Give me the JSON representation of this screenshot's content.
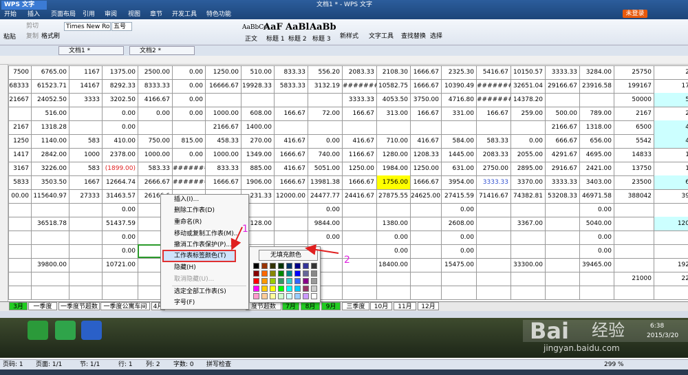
{
  "title_bar": {
    "app": "WPS 文字",
    "document": "文档1 * - WPS 文字",
    "login": "未登录"
  },
  "menu": [
    "开始",
    "插入",
    "页面布局",
    "引用",
    "审阅",
    "视图",
    "章节",
    "开发工具",
    "特色功能"
  ],
  "ribbon": {
    "paste": "粘贴",
    "cut": "剪切",
    "copy": "复制",
    "format_painter": "格式刷",
    "font": "Times New Ro",
    "size": "五号",
    "styles": [
      {
        "sample": "AaBbCc",
        "name": "正文"
      },
      {
        "sample": "AaF",
        "name": "标题 1"
      },
      {
        "sample": "AaBl",
        "name": "标题 2"
      },
      {
        "sample": "AaBb",
        "name": "标题 3"
      }
    ],
    "new_style": "新样式",
    "text_tools": "文字工具",
    "find_replace": "查找替换",
    "select": "选择"
  },
  "doc_tabs": [
    "文档1 *",
    "文档2 *"
  ],
  "table": {
    "rows": [
      [
        "7500",
        "6765.00",
        "1167",
        "1375.00",
        "2500.00",
        "0.00",
        "1250.00",
        "510.00",
        "833.33",
        "556.20",
        "2083.33",
        "2108.30",
        "1666.67",
        "2325.30",
        "5416.67",
        "10150.57",
        "3333.33",
        "3284.00",
        "25750",
        "2"
      ],
      [
        "68333",
        "61523.71",
        "14167",
        "8292.33",
        "8333.33",
        "0.00",
        "16666.67",
        "19928.33",
        "5833.33",
        "3132.19",
        "########",
        "10582.75",
        "1666.67",
        "10390.49",
        "########",
        "32651.04",
        "29166.67",
        "23916.58",
        "199167",
        "17"
      ],
      [
        "21667",
        "24052.50",
        "3333",
        "3202.50",
        "4166.67",
        "0.00",
        null,
        null,
        null,
        null,
        "3333.33",
        "4053.50",
        "3750.00",
        "4716.80",
        "########",
        "14378.20",
        null,
        null,
        "50000",
        "5"
      ],
      [
        null,
        "516.00",
        null,
        "0.00",
        "0.00",
        "0.00",
        "1000.00",
        "608.00",
        "166.67",
        "72.00",
        "166.67",
        "313.00",
        "166.67",
        "331.00",
        "166.67",
        "259.00",
        "500.00",
        "789.00",
        "2167",
        "2"
      ],
      [
        "2167",
        "1318.28",
        null,
        "0.00",
        null,
        null,
        "2166.67",
        "1400.00",
        null,
        null,
        null,
        null,
        null,
        null,
        null,
        null,
        "2166.67",
        "1318.00",
        "6500",
        "4"
      ],
      [
        "1250",
        "1140.00",
        "583",
        "410.00",
        "750.00",
        "815.00",
        "458.33",
        "270.00",
        "416.67",
        "0.00",
        "416.67",
        "710.00",
        "416.67",
        "584.00",
        "583.33",
        "0.00",
        "666.67",
        "656.00",
        "5542",
        "4"
      ],
      [
        "1417",
        "2842.00",
        "1000",
        "2378.00",
        "1000.00",
        "0.00",
        "1000.00",
        "1349.00",
        "1666.67",
        "740.00",
        "1166.67",
        "1280.00",
        "1208.33",
        "1445.00",
        "2083.33",
        "2055.00",
        "4291.67",
        "4695.00",
        "14833",
        "1"
      ],
      [
        "3167",
        "3226.00",
        "583",
        "(1899.00)",
        "583.33",
        "########",
        "833.33",
        "885.00",
        "416.67",
        "5051.00",
        "1250.00",
        "1984.00",
        "1250.00",
        "631.00",
        "2750.00",
        "2895.00",
        "2916.67",
        "2421.00",
        "13750",
        "1"
      ],
      [
        "5833",
        "3503.50",
        "1667",
        "12664.74",
        "2666.67",
        "########",
        "1666.67",
        "1906.00",
        "1666.67",
        "13981.38",
        "1666.67",
        "1756.00",
        "1666.67",
        "3954.00",
        "3333.33",
        "3370.00",
        "3333.33",
        "3403.00",
        "23500",
        "6"
      ],
      [
        "00.00",
        "115640.97",
        "27333",
        "31463.57",
        "26166.6",
        null,
        null,
        "231.33",
        "12000.00",
        "24477.77",
        "24416.67",
        "27875.55",
        "24625.00",
        "27415.59",
        "71416.67",
        "74382.81",
        "53208.33",
        "46971.58",
        "388042",
        "39"
      ],
      [
        null,
        null,
        null,
        "0.00",
        null,
        null,
        null,
        null,
        null,
        "0.00",
        null,
        null,
        null,
        "0.00",
        null,
        null,
        null,
        "0.00",
        null,
        null
      ],
      [
        null,
        "36518.78",
        null,
        "51437.59",
        null,
        null,
        null,
        "128.00",
        null,
        "9844.00",
        null,
        "1380.00",
        null,
        "2608.00",
        null,
        "3367.00",
        null,
        "5040.00",
        null,
        "120"
      ],
      [
        null,
        null,
        null,
        "0.00",
        null,
        null,
        null,
        null,
        null,
        "0.00",
        null,
        "0.00",
        null,
        "0.00",
        null,
        null,
        null,
        "0.00",
        null,
        null
      ],
      [
        null,
        null,
        null,
        "0.00",
        null,
        null,
        null,
        null,
        null,
        null,
        null,
        "0.00",
        null,
        "0.00",
        null,
        null,
        null,
        "0.00",
        null,
        null
      ],
      [
        null,
        "39800.00",
        null,
        "10721.00",
        null,
        null,
        null,
        null,
        null,
        null,
        null,
        "18400.00",
        null,
        "15475.00",
        null,
        "33300.00",
        null,
        "39465.00",
        null,
        "192"
      ],
      [
        null,
        null,
        null,
        null,
        null,
        null,
        null,
        null,
        null,
        null,
        null,
        null,
        null,
        null,
        null,
        null,
        null,
        null,
        "21000",
        "22"
      ],
      [
        null,
        null,
        null,
        null,
        null,
        null,
        null,
        null,
        null,
        null,
        null,
        null,
        null,
        null,
        null,
        null,
        null,
        null,
        null,
        null
      ]
    ]
  },
  "sheet_tabs": [
    "3月",
    "一季度",
    "一季度节超数",
    "一季度公寓车间",
    "4月",
    "度节超数",
    "7月",
    "8月",
    "9月",
    "三季度",
    "10月",
    "11月",
    "12月"
  ],
  "context_menu": {
    "items": [
      "插入(I)...",
      "删除工作表(D)",
      "重命名(R)",
      "移动或复制工作表(M)...",
      "撤消工作表保护(P)...",
      "工作表标签颜色(T)",
      "隐藏(H)",
      "取消隐藏(U)...",
      "选定全部工作表(S)",
      "字号(F)"
    ]
  },
  "submenu": {
    "no_fill": "无填充颜色"
  },
  "annotations": [
    "1",
    "2"
  ],
  "status_bar": {
    "items": [
      "页码: 1",
      "页面: 1/1",
      "节: 1/1",
      "行: 1",
      "列: 2",
      "字数: 0",
      "拼写检查"
    ],
    "zoom": "299 %"
  },
  "watermark": {
    "logo": "Bai",
    "brand": "经验",
    "url": "jingyan.baidu.com"
  },
  "clock": {
    "time": "6:38",
    "date": "2015/3/20"
  }
}
